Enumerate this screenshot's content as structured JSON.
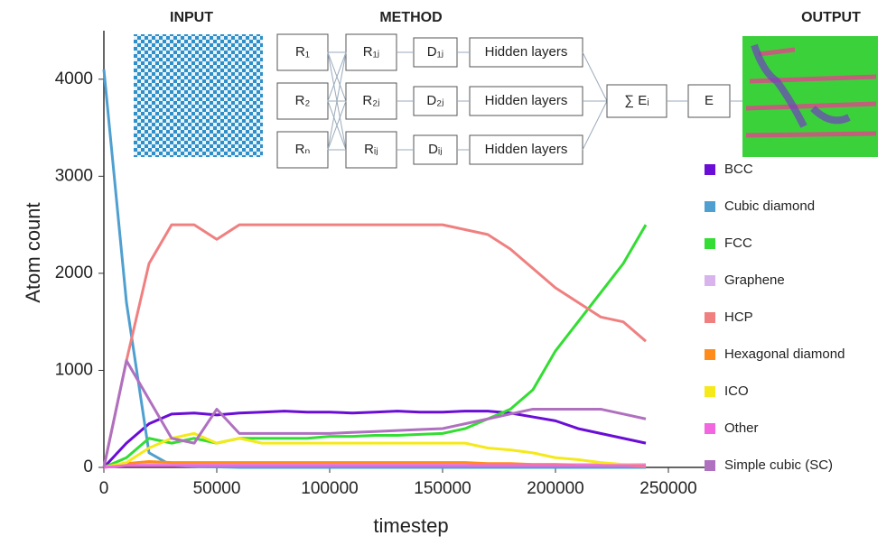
{
  "chart_data": {
    "type": "line",
    "x_label": "timestep",
    "y_label": "Atom count",
    "xlim": [
      0,
      270000
    ],
    "ylim": [
      0,
      4500
    ],
    "xticks": [
      0,
      50000,
      100000,
      150000,
      200000,
      250000
    ],
    "yticks": [
      0,
      1000,
      2000,
      3000,
      4000
    ],
    "grid": false,
    "legend": "right",
    "x": [
      0,
      10000,
      20000,
      30000,
      40000,
      50000,
      60000,
      70000,
      80000,
      90000,
      100000,
      110000,
      120000,
      130000,
      140000,
      150000,
      160000,
      170000,
      180000,
      190000,
      200000,
      210000,
      220000,
      230000,
      240000
    ],
    "series": [
      {
        "name": "BCC",
        "color": "#6a0dd6",
        "values": [
          0,
          250,
          450,
          550,
          560,
          540,
          560,
          570,
          580,
          570,
          570,
          560,
          570,
          580,
          570,
          570,
          580,
          580,
          560,
          520,
          480,
          400,
          350,
          300,
          250
        ]
      },
      {
        "name": "Cubic diamond",
        "color": "#4f9fd0",
        "values": [
          4100,
          1700,
          150,
          20,
          10,
          5,
          0,
          0,
          0,
          0,
          0,
          0,
          0,
          0,
          0,
          0,
          0,
          0,
          0,
          0,
          0,
          0,
          0,
          0,
          0
        ]
      },
      {
        "name": "FCC",
        "color": "#33dd33",
        "values": [
          0,
          100,
          300,
          250,
          300,
          250,
          300,
          300,
          300,
          300,
          320,
          320,
          330,
          330,
          340,
          350,
          400,
          500,
          600,
          800,
          1200,
          1500,
          1800,
          2100,
          2500
        ]
      },
      {
        "name": "Graphene",
        "color": "#d9b3ec",
        "values": [
          0,
          30,
          40,
          30,
          30,
          30,
          30,
          30,
          30,
          30,
          30,
          30,
          30,
          30,
          30,
          30,
          30,
          30,
          30,
          30,
          30,
          30,
          30,
          30,
          30
        ]
      },
      {
        "name": "HCP",
        "color": "#f08080",
        "values": [
          0,
          1100,
          2100,
          2500,
          2500,
          2350,
          2500,
          2500,
          2500,
          2500,
          2500,
          2500,
          2500,
          2500,
          2500,
          2500,
          2450,
          2400,
          2250,
          2050,
          1850,
          1700,
          1550,
          1500,
          1300
        ]
      },
      {
        "name": "Hexagonal diamond",
        "color": "#ff8c1a",
        "values": [
          0,
          40,
          60,
          50,
          50,
          50,
          50,
          50,
          50,
          50,
          50,
          50,
          50,
          50,
          50,
          50,
          50,
          40,
          40,
          30,
          30,
          20,
          20,
          20,
          10
        ]
      },
      {
        "name": "ICO",
        "color": "#f5e91a",
        "values": [
          0,
          50,
          200,
          300,
          350,
          250,
          300,
          250,
          250,
          250,
          250,
          250,
          250,
          250,
          250,
          250,
          250,
          200,
          180,
          150,
          100,
          80,
          50,
          30,
          20
        ]
      },
      {
        "name": "Other",
        "color": "#f266e0",
        "values": [
          0,
          20,
          20,
          20,
          20,
          20,
          20,
          20,
          20,
          20,
          20,
          20,
          20,
          20,
          20,
          20,
          20,
          20,
          20,
          20,
          20,
          20,
          20,
          20,
          20
        ]
      },
      {
        "name": "Simple cubic (SC)",
        "color": "#b070c0",
        "values": [
          0,
          1100,
          700,
          300,
          250,
          600,
          350,
          350,
          350,
          350,
          350,
          360,
          370,
          380,
          390,
          400,
          450,
          500,
          550,
          600,
          600,
          600,
          600,
          550,
          500
        ]
      }
    ]
  },
  "diagram": {
    "input": "INPUT",
    "method": "METHOD",
    "output": "OUTPUT",
    "r": [
      "R₁",
      "R₂",
      "Rₙ"
    ],
    "rj": [
      "R₁ⱼ",
      "R₂ⱼ",
      "Rᵢⱼ"
    ],
    "d": [
      "D₁ⱼ",
      "D₂ⱼ",
      "Dᵢⱼ"
    ],
    "hidden": [
      "Hidden layers",
      "Hidden layers",
      "Hidden layers"
    ],
    "sum": "∑ Eᵢ",
    "e": "E"
  }
}
